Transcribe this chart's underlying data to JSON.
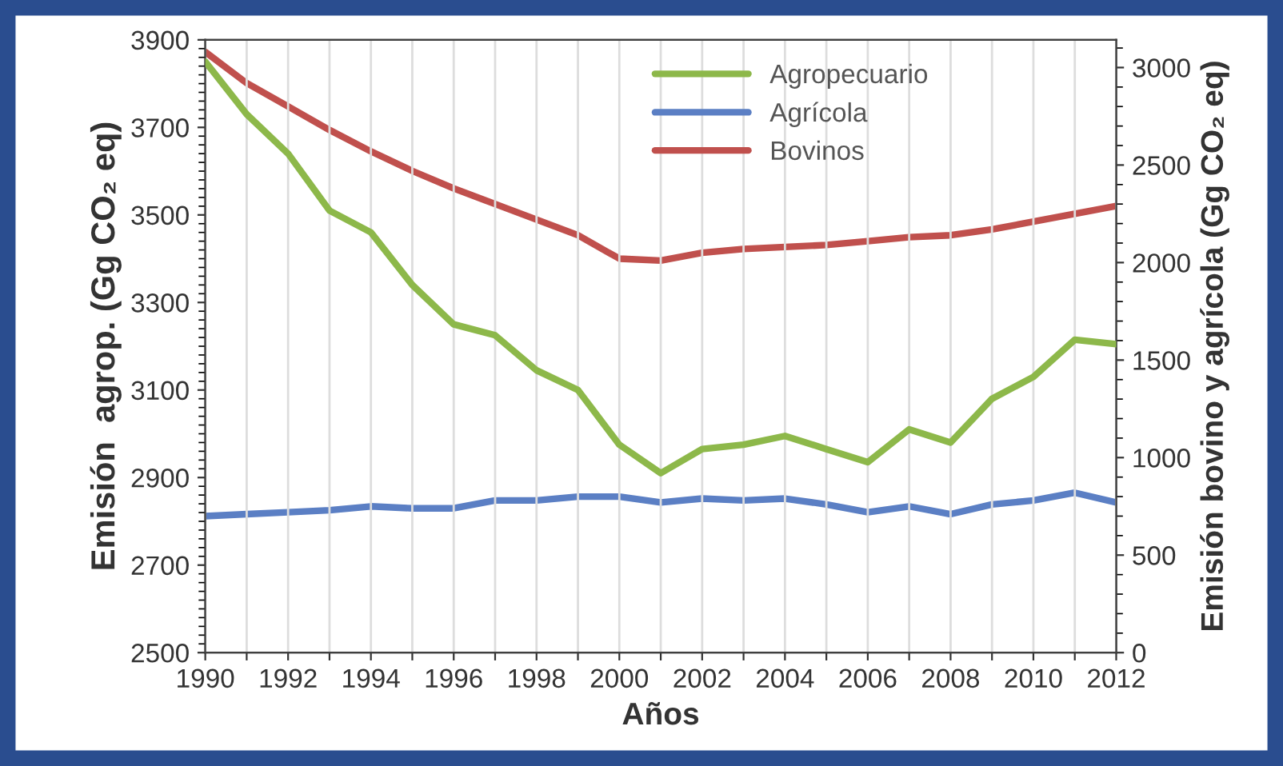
{
  "chart_data": {
    "type": "line",
    "xlabel": "Años",
    "ylabel": "Emisión  agrop. (Gg CO₂ eq)",
    "y2label": "Emisión bovino y agrícola (Gg CO₂ eq)",
    "x": [
      1990,
      1991,
      1992,
      1993,
      1994,
      1995,
      1996,
      1997,
      1998,
      1999,
      2000,
      2001,
      2002,
      2003,
      2004,
      2005,
      2006,
      2007,
      2008,
      2009,
      2010,
      2011,
      2012
    ],
    "series": [
      {
        "name": "Agropecuario",
        "color": "#8db84a",
        "values": [
          3850,
          3730,
          3640,
          3510,
          3460,
          3340,
          3250,
          3225,
          3145,
          3100,
          2975,
          2910,
          2965,
          2975,
          2995,
          2965,
          2935,
          3010,
          2980,
          3080,
          3130,
          3215,
          3205
        ]
      },
      {
        "name": "Agrícola",
        "color": "#5b7fc4",
        "axis": "y2",
        "values": [
          700,
          710,
          720,
          730,
          750,
          740,
          740,
          780,
          780,
          800,
          800,
          770,
          790,
          780,
          790,
          760,
          720,
          750,
          710,
          760,
          780,
          820,
          770
        ]
      },
      {
        "name": "Bovinos",
        "color": "#c0504d",
        "axis": "y2",
        "values": [
          3080,
          2920,
          2800,
          2680,
          2570,
          2470,
          2380,
          2300,
          2220,
          2140,
          2020,
          2010,
          2050,
          2070,
          2080,
          2090,
          2110,
          2130,
          2140,
          2170,
          2210,
          2250,
          2290
        ]
      }
    ],
    "xlim": [
      1990,
      2012
    ],
    "xticks": [
      1990,
      {
        "value": 1991,
        "label": null
      },
      1992,
      {
        "value": 1993,
        "label": null
      },
      1994,
      {
        "value": 1995,
        "label": null
      },
      1996,
      {
        "value": 1997,
        "label": null
      },
      1998,
      {
        "value": 1999,
        "label": null
      },
      2000,
      {
        "value": 2001,
        "label": null
      },
      2002,
      {
        "value": 2003,
        "label": null
      },
      2004,
      {
        "value": 2005,
        "label": null
      },
      2006,
      {
        "value": 2007,
        "label": null
      },
      2008,
      {
        "value": 2009,
        "label": null
      },
      2010,
      {
        "value": 2011,
        "label": null
      },
      2012
    ],
    "ylim": [
      2500,
      3900
    ],
    "yticks": [
      2500,
      2700,
      2900,
      3100,
      3300,
      3500,
      3700,
      3900
    ],
    "y2lim": [
      0,
      3142
    ],
    "y2ticks": [
      0,
      500,
      1000,
      1500,
      2000,
      2500,
      3000
    ],
    "grid": "x",
    "legend": "top right",
    "marker": "none",
    "line_style": "solid"
  }
}
